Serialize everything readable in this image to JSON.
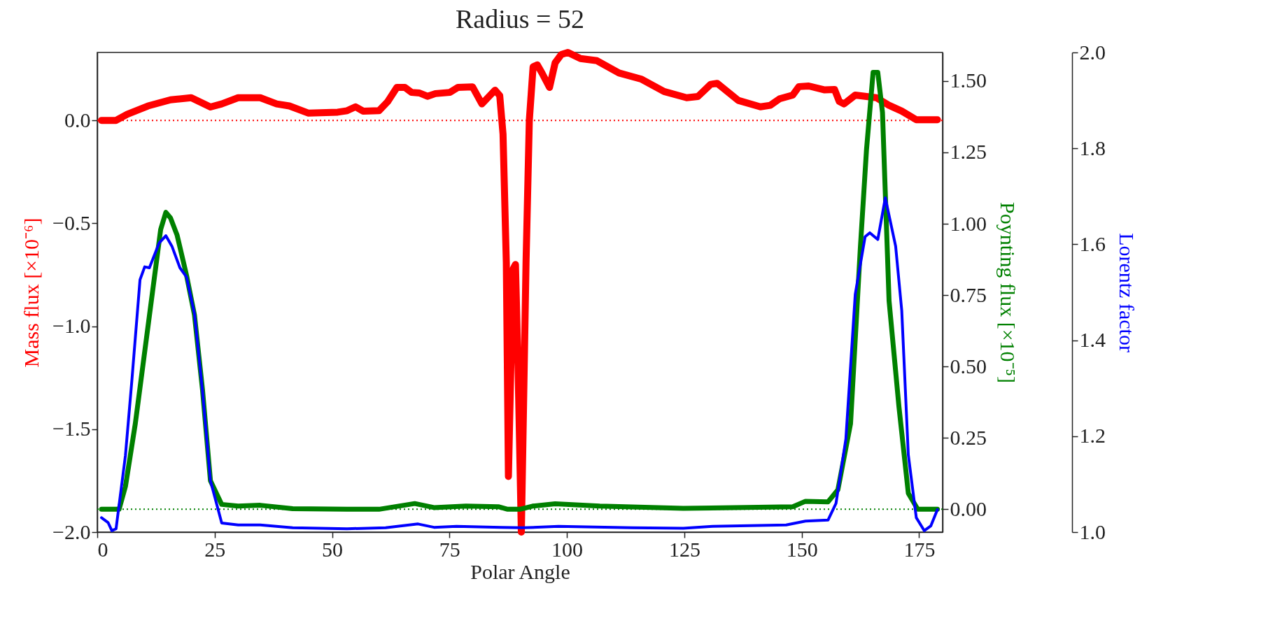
{
  "chart_data": {
    "type": "line",
    "title": "Radius = 52",
    "xlabel": "Polar Angle",
    "ylabel": "Mass flux  [×10⁻⁶]",
    "y2label": "Poynting flux  [×10⁻⁵]",
    "y3label": "Lorentz factor",
    "xlim": [
      0,
      180
    ],
    "xticks": [
      0,
      25,
      50,
      75,
      100,
      125,
      150,
      175
    ],
    "ylim": [
      -2.0,
      0.33
    ],
    "yticks": [
      {
        "value": -2,
        "label": "−2.0"
      },
      {
        "value": -1.5,
        "label": "−1.5"
      },
      {
        "value": -1,
        "label": "−1.0"
      },
      {
        "value": -0.5,
        "label": "−0.5"
      },
      {
        "value": 0,
        "label": "0.0"
      }
    ],
    "y2lim": [
      -0.08,
      1.6
    ],
    "y2ticks": [
      {
        "value": 0,
        "label": "0.00"
      },
      {
        "value": 0.25,
        "label": "0.25"
      },
      {
        "value": 0.5,
        "label": "0.50"
      },
      {
        "value": 0.75,
        "label": "0.75"
      },
      {
        "value": 1,
        "label": "1.00"
      },
      {
        "value": 1.25,
        "label": "1.25"
      },
      {
        "value": 1.5,
        "label": "1.50"
      }
    ],
    "y3lim": [
      1.0,
      2.0
    ],
    "y3ticks": [
      {
        "value": 1,
        "label": "1.0"
      },
      {
        "value": 1.2,
        "label": "1.2"
      },
      {
        "value": 1.4,
        "label": "1.4"
      },
      {
        "value": 1.6,
        "label": "1.6"
      },
      {
        "value": 1.8,
        "label": "1.8"
      },
      {
        "value": 2,
        "label": "2.0"
      }
    ],
    "grid": false,
    "ref_lines": [
      {
        "axis": "y",
        "value": 0,
        "color": "#ff0000",
        "line_style": "dotted"
      },
      {
        "axis": "y2",
        "value": 0,
        "color": "#008000",
        "line_style": "dotted"
      }
    ],
    "series": [
      {
        "color": "#ff0000",
        "axis": "y",
        "x": [
          0.9,
          4.0,
          6.4,
          10.8,
          15.6,
          20.0,
          24.1,
          26.5,
          30.0,
          34.7,
          38.2,
          40.9,
          45.0,
          51.2,
          53.2,
          55.0,
          56.6,
          60.0,
          61.8,
          63.8,
          65.5,
          66.9,
          68.6,
          70.3,
          72.0,
          75.1,
          76.8,
          79.9,
          81.9,
          84.7,
          85.7,
          86.4,
          87.1,
          87.55,
          88.1,
          88.6,
          89.05,
          89.6,
          90.3,
          91.3,
          92.0,
          92.8,
          93.7,
          94.7,
          96.3,
          97.5,
          98.8,
          100.2,
          102.9,
          106.4,
          111.1,
          115.9,
          120.7,
          125.5,
          127.9,
          130.6,
          132.0,
          136.5,
          141.2,
          143.3,
          145.3,
          148.1,
          149.4,
          151.5,
          154.9,
          157.0,
          158.0,
          159.0,
          161.4,
          165.9,
          168.6,
          171.3,
          174.4,
          178.9
        ],
        "values": [
          0.0,
          0.0,
          0.03,
          0.07,
          0.1,
          0.11,
          0.065,
          0.08,
          0.11,
          0.11,
          0.08,
          0.07,
          0.035,
          0.04,
          0.047,
          0.066,
          0.045,
          0.047,
          0.09,
          0.16,
          0.16,
          0.136,
          0.133,
          0.117,
          0.13,
          0.136,
          0.16,
          0.163,
          0.08,
          0.147,
          0.12,
          -0.067,
          -0.69,
          -1.73,
          -1.16,
          -0.72,
          -0.7,
          -1.2,
          -2.0,
          -0.69,
          0.0,
          0.26,
          0.27,
          0.23,
          0.16,
          0.28,
          0.32,
          0.33,
          0.3,
          0.29,
          0.23,
          0.2,
          0.14,
          0.11,
          0.116,
          0.175,
          0.18,
          0.097,
          0.066,
          0.073,
          0.105,
          0.123,
          0.164,
          0.167,
          0.148,
          0.15,
          0.092,
          0.08,
          0.123,
          0.11,
          0.073,
          0.045,
          0.003,
          0.003
        ]
      },
      {
        "color": "#008000",
        "axis": "y2",
        "x": [
          0.9,
          4.65,
          6.0,
          8.1,
          10.8,
          13.5,
          14.6,
          15.6,
          17.0,
          19.0,
          20.7,
          22.4,
          24.1,
          26.5,
          30.0,
          34.7,
          41.6,
          53.2,
          60.0,
          67.6,
          71.7,
          78.5,
          85.4,
          87.4,
          90.0,
          92.7,
          97.5,
          107.0,
          124.8,
          148.1,
          150.8,
          155.6,
          157.7,
          160.4,
          162.5,
          163.8,
          165.2,
          166.2,
          167.2,
          168.6,
          170.7,
          172.7,
          174.7,
          178.9
        ],
        "values": [
          0.0,
          0.0,
          0.08,
          0.3,
          0.64,
          0.98,
          1.04,
          1.02,
          0.96,
          0.82,
          0.68,
          0.42,
          0.1,
          0.017,
          0.011,
          0.014,
          0.002,
          0.0,
          0.0,
          0.02,
          0.006,
          0.011,
          0.009,
          0.0,
          0.0,
          0.011,
          0.019,
          0.011,
          0.003,
          0.009,
          0.028,
          0.026,
          0.068,
          0.3,
          0.92,
          1.26,
          1.53,
          1.53,
          1.39,
          0.73,
          0.36,
          0.056,
          0.0,
          0.0
        ]
      },
      {
        "color": "#0000ff",
        "axis": "y3",
        "x": [
          0.9,
          2.3,
          3.1,
          4.0,
          6.0,
          7.4,
          9.1,
          10.1,
          11.1,
          13.2,
          14.6,
          15.9,
          17.6,
          19.0,
          20.7,
          22.4,
          24.1,
          26.5,
          30.0,
          34.7,
          41.6,
          53.2,
          61.4,
          68.3,
          71.7,
          76.5,
          86.0,
          90.6,
          98.2,
          113.9,
          124.8,
          131.0,
          146.7,
          150.8,
          155.6,
          157.3,
          159.4,
          161.4,
          163.5,
          164.5,
          166.2,
          167.8,
          170.0,
          171.3,
          172.7,
          174.4,
          176.1,
          177.5,
          178.9
        ],
        "values": [
          1.03,
          1.02,
          1.003,
          1.007,
          1.16,
          1.32,
          1.526,
          1.553,
          1.551,
          1.603,
          1.618,
          1.596,
          1.551,
          1.532,
          1.455,
          1.295,
          1.107,
          1.019,
          1.015,
          1.015,
          1.009,
          1.007,
          1.009,
          1.017,
          1.01,
          1.012,
          1.01,
          1.009,
          1.012,
          1.009,
          1.008,
          1.012,
          1.015,
          1.023,
          1.025,
          1.06,
          1.194,
          1.496,
          1.616,
          1.624,
          1.61,
          1.697,
          1.596,
          1.462,
          1.161,
          1.03,
          1.003,
          1.013,
          1.047
        ]
      }
    ]
  }
}
